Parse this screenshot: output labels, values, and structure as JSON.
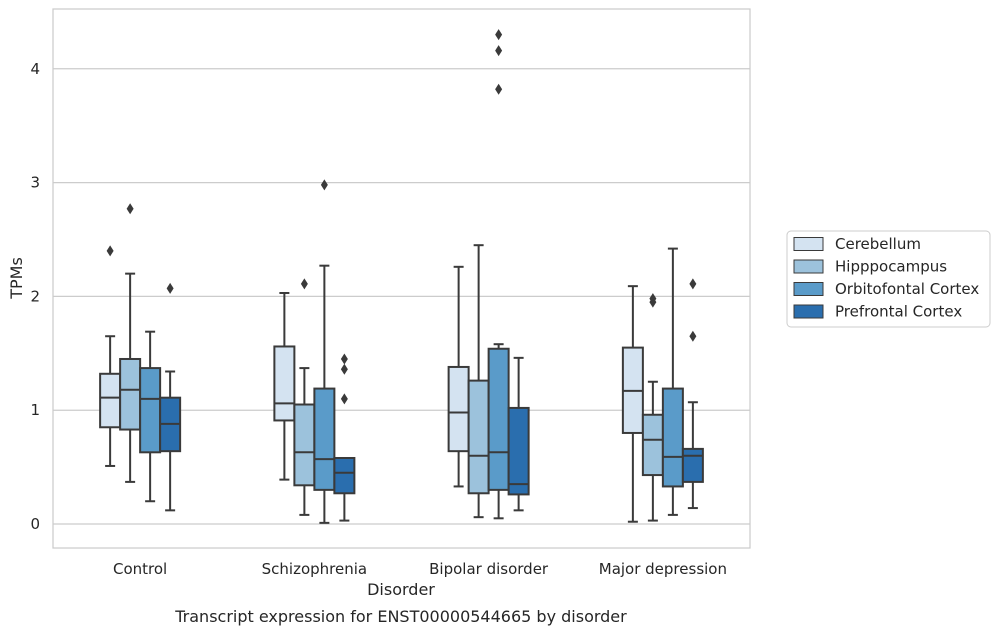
{
  "chart_data": {
    "type": "boxplot",
    "caption": "Transcript expression for ENST00000544665 by disorder",
    "xlabel": "Disorder",
    "ylabel": "TPMs",
    "ylim": [
      -0.2,
      4.55
    ],
    "yticks": [
      0,
      1,
      2,
      3,
      4
    ],
    "grid": "horizontal",
    "legend_position": "right",
    "categories": [
      "Control",
      "Schizophrenia",
      "Bipolar disorder",
      "Major depression"
    ],
    "series": [
      {
        "name": "Cerebellum",
        "color": "#d4e3f1",
        "boxes": [
          {
            "whislo": 0.51,
            "q1": 0.85,
            "med": 1.11,
            "q3": 1.32,
            "whishi": 1.65,
            "fliers": [
              2.4
            ]
          },
          {
            "whislo": 0.39,
            "q1": 0.91,
            "med": 1.06,
            "q3": 1.56,
            "whishi": 2.03,
            "fliers": []
          },
          {
            "whislo": 0.33,
            "q1": 0.64,
            "med": 0.98,
            "q3": 1.38,
            "whishi": 2.26,
            "fliers": []
          },
          {
            "whislo": 0.02,
            "q1": 0.8,
            "med": 1.17,
            "q3": 1.55,
            "whishi": 2.09,
            "fliers": []
          }
        ]
      },
      {
        "name": "Hipppocampus",
        "color": "#9cc2dc",
        "boxes": [
          {
            "whislo": 0.37,
            "q1": 0.83,
            "med": 1.18,
            "q3": 1.45,
            "whishi": 2.2,
            "fliers": [
              2.77
            ]
          },
          {
            "whislo": 0.08,
            "q1": 0.34,
            "med": 0.63,
            "q3": 1.05,
            "whishi": 1.37,
            "fliers": [
              2.11
            ]
          },
          {
            "whislo": 0.06,
            "q1": 0.27,
            "med": 0.6,
            "q3": 1.26,
            "whishi": 2.45,
            "fliers": []
          },
          {
            "whislo": 0.03,
            "q1": 0.43,
            "med": 0.74,
            "q3": 0.96,
            "whishi": 1.25,
            "fliers": [
              1.95,
              1.98
            ]
          }
        ]
      },
      {
        "name": "Orbitofontal Cortex",
        "color": "#5a9bc9",
        "boxes": [
          {
            "whislo": 0.2,
            "q1": 0.63,
            "med": 1.1,
            "q3": 1.37,
            "whishi": 1.69,
            "fliers": []
          },
          {
            "whislo": 0.01,
            "q1": 0.3,
            "med": 0.57,
            "q3": 1.19,
            "whishi": 2.27,
            "fliers": [
              2.98
            ]
          },
          {
            "whislo": 0.05,
            "q1": 0.3,
            "med": 0.63,
            "q3": 1.54,
            "whishi": 1.58,
            "fliers": [
              3.82,
              4.16,
              4.3
            ]
          },
          {
            "whislo": 0.08,
            "q1": 0.33,
            "med": 0.59,
            "q3": 1.19,
            "whishi": 2.42,
            "fliers": []
          }
        ]
      },
      {
        "name": "Prefrontal Cortex",
        "color": "#2a6eae",
        "boxes": [
          {
            "whislo": 0.12,
            "q1": 0.64,
            "med": 0.88,
            "q3": 1.11,
            "whishi": 1.34,
            "fliers": [
              2.07
            ]
          },
          {
            "whislo": 0.03,
            "q1": 0.27,
            "med": 0.45,
            "q3": 0.58,
            "whishi": 0.58,
            "fliers": [
              1.1,
              1.36,
              1.45
            ]
          },
          {
            "whislo": 0.12,
            "q1": 0.26,
            "med": 0.35,
            "q3": 1.02,
            "whishi": 1.46,
            "fliers": []
          },
          {
            "whislo": 0.14,
            "q1": 0.37,
            "med": 0.6,
            "q3": 0.66,
            "whishi": 1.07,
            "fliers": [
              1.65,
              2.11
            ]
          }
        ]
      }
    ]
  }
}
